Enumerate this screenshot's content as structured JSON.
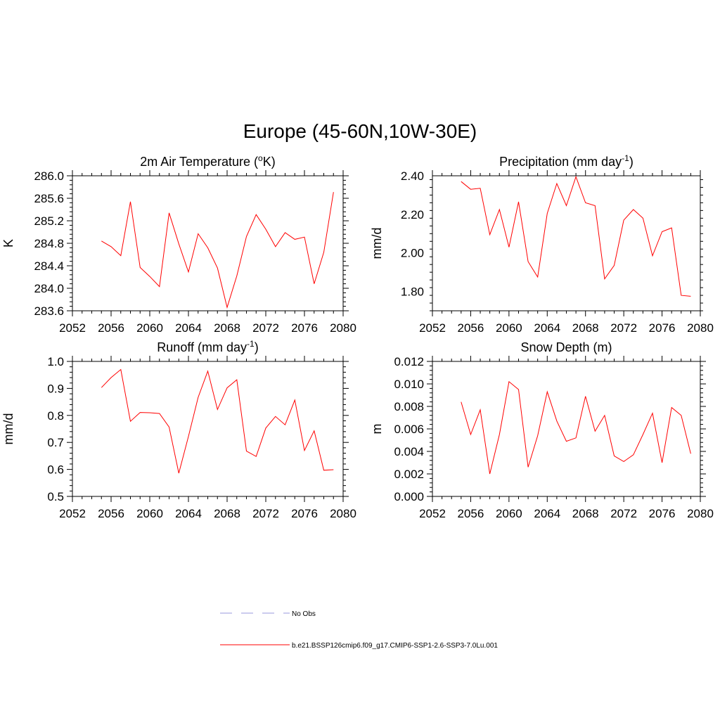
{
  "figure": {
    "title": "Europe (45-60N,10W-30E)"
  },
  "colors": {
    "model": "#ff0000",
    "obs": "#9999dd",
    "axes": "#000000"
  },
  "legend": {
    "items": [
      {
        "label": "No Obs",
        "style": "dashed",
        "color": "#9999dd"
      },
      {
        "label": "b.e21.BSSP126cmip6.f09_g17.CMIP6-SSP1-2.6-SSP3-7.0Lu.001",
        "style": "solid",
        "color": "#ff0000"
      }
    ]
  },
  "chart_data": [
    {
      "type": "line",
      "title": "2m Air Temperature (°K)",
      "title_parts": {
        "before": "2m Air Temperature (",
        "sup": "o",
        "after": "K)"
      },
      "xlabel": "",
      "ylabel": "K",
      "xlim": [
        2052,
        2080
      ],
      "ylim": [
        283.6,
        286.0
      ],
      "xticks": [
        2052,
        2056,
        2060,
        2064,
        2068,
        2072,
        2076,
        2080
      ],
      "yticks": [
        283.6,
        284.0,
        284.4,
        284.8,
        285.2,
        285.6,
        286.0
      ],
      "ytick_labels": [
        "283.6",
        "284.0",
        "284.4",
        "284.8",
        "285.2",
        "285.6",
        "286.0"
      ],
      "x": [
        2055,
        2056,
        2057,
        2058,
        2059,
        2060,
        2061,
        2062,
        2063,
        2064,
        2065,
        2066,
        2067,
        2068,
        2069,
        2070,
        2071,
        2072,
        2073,
        2074,
        2075,
        2076,
        2077,
        2078,
        2079
      ],
      "values": [
        284.84,
        284.74,
        284.58,
        285.54,
        284.37,
        284.21,
        284.03,
        285.34,
        284.79,
        284.29,
        284.97,
        284.72,
        284.36,
        283.66,
        284.22,
        284.92,
        285.31,
        285.05,
        284.74,
        284.99,
        284.87,
        284.91,
        284.08,
        284.64,
        285.71
      ]
    },
    {
      "type": "line",
      "title": "Precipitation (mm day-1)",
      "title_parts": {
        "before": "Precipitation (mm day",
        "sup": "-1",
        "after": ")"
      },
      "xlabel": "",
      "ylabel": "mm/d",
      "xlim": [
        2052,
        2080
      ],
      "ylim": [
        1.7,
        2.4
      ],
      "xticks": [
        2052,
        2056,
        2060,
        2064,
        2068,
        2072,
        2076,
        2080
      ],
      "yticks": [
        1.8,
        2.0,
        2.2,
        2.4
      ],
      "ytick_labels": [
        "1.80",
        "2.00",
        "2.20",
        "2.40"
      ],
      "x": [
        2055,
        2056,
        2057,
        2058,
        2059,
        2060,
        2061,
        2062,
        2063,
        2064,
        2065,
        2066,
        2067,
        2068,
        2069,
        2070,
        2071,
        2072,
        2073,
        2074,
        2075,
        2076,
        2077,
        2078,
        2079
      ],
      "values": [
        2.37,
        2.33,
        2.335,
        2.095,
        2.225,
        2.03,
        2.265,
        1.955,
        1.875,
        2.205,
        2.36,
        2.245,
        2.395,
        2.26,
        2.245,
        1.865,
        1.935,
        2.17,
        2.225,
        2.18,
        1.985,
        2.11,
        2.13,
        1.78,
        1.775
      ]
    },
    {
      "type": "line",
      "title": "Runoff (mm day-1)",
      "title_parts": {
        "before": "Runoff (mm day",
        "sup": "-1",
        "after": ")"
      },
      "xlabel": "",
      "ylabel": "mm/d",
      "xlim": [
        2052,
        2080
      ],
      "ylim": [
        0.5,
        1.0
      ],
      "xticks": [
        2052,
        2056,
        2060,
        2064,
        2068,
        2072,
        2076,
        2080
      ],
      "yticks": [
        0.5,
        0.6,
        0.7,
        0.8,
        0.9,
        1.0
      ],
      "ytick_labels": [
        "0.5",
        "0.6",
        "0.7",
        "0.8",
        "0.9",
        "1.0"
      ],
      "x": [
        2055,
        2056,
        2057,
        2058,
        2059,
        2060,
        2061,
        2062,
        2063,
        2064,
        2065,
        2066,
        2067,
        2068,
        2069,
        2070,
        2071,
        2072,
        2073,
        2074,
        2075,
        2076,
        2077,
        2078,
        2079
      ],
      "values": [
        0.903,
        0.94,
        0.97,
        0.778,
        0.811,
        0.81,
        0.807,
        0.757,
        0.586,
        0.722,
        0.867,
        0.964,
        0.822,
        0.902,
        0.932,
        0.668,
        0.648,
        0.753,
        0.796,
        0.765,
        0.857,
        0.67,
        0.743,
        0.597,
        0.599
      ]
    },
    {
      "type": "line",
      "title": "Snow Depth (m)",
      "title_parts": {
        "before": "Snow Depth (m)",
        "sup": "",
        "after": ""
      },
      "xlabel": "",
      "ylabel": "m",
      "xlim": [
        2052,
        2080
      ],
      "ylim": [
        0.0,
        0.012
      ],
      "xticks": [
        2052,
        2056,
        2060,
        2064,
        2068,
        2072,
        2076,
        2080
      ],
      "yticks": [
        0.0,
        0.002,
        0.004,
        0.006,
        0.008,
        0.01,
        0.012
      ],
      "ytick_labels": [
        "0.000",
        "0.002",
        "0.004",
        "0.006",
        "0.008",
        "0.010",
        "0.012"
      ],
      "x": [
        2055,
        2056,
        2057,
        2058,
        2059,
        2060,
        2061,
        2062,
        2063,
        2064,
        2065,
        2066,
        2067,
        2068,
        2069,
        2070,
        2071,
        2072,
        2073,
        2074,
        2075,
        2076,
        2077,
        2078,
        2079
      ],
      "values": [
        0.0084,
        0.0055,
        0.0077,
        0.002,
        0.0055,
        0.0102,
        0.0095,
        0.0026,
        0.0054,
        0.0093,
        0.0067,
        0.0049,
        0.0052,
        0.0089,
        0.0058,
        0.0072,
        0.0036,
        0.0031,
        0.0037,
        0.0055,
        0.0074,
        0.003,
        0.0079,
        0.0072,
        0.0038
      ]
    }
  ]
}
